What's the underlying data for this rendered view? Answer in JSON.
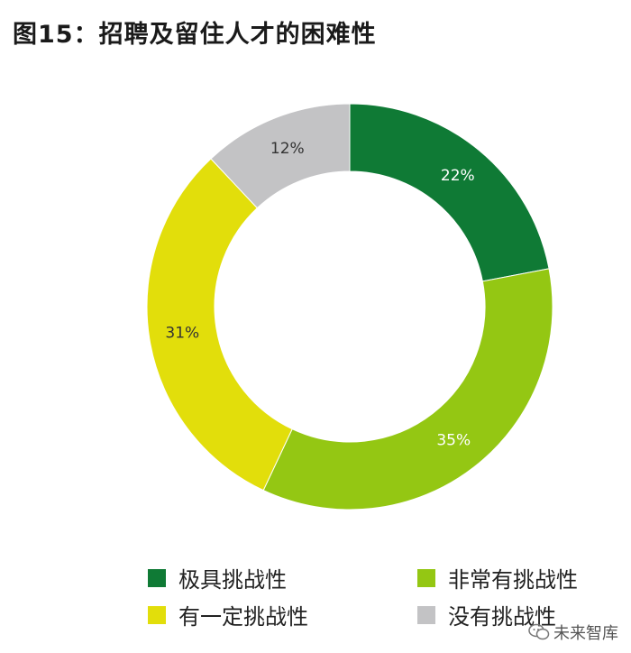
{
  "title": "图15：招聘及留住人才的困难性",
  "chart_data": {
    "type": "pie",
    "donut": true,
    "start_angle_deg": 0,
    "direction": "clockwise",
    "categories": [
      "极具挑战性",
      "非常有挑战性",
      "有一定挑战性",
      "没有挑战性"
    ],
    "values": [
      22,
      35,
      31,
      12
    ],
    "data_labels": [
      "22%",
      "35%",
      "31%",
      "12%"
    ],
    "colors": [
      "#0f7a35",
      "#94c713",
      "#e2de0b",
      "#c3c3c5"
    ],
    "label_colors": [
      "#ffffff",
      "#ffffff",
      "#333333",
      "#333333"
    ],
    "legend_position": "bottom"
  },
  "legend": {
    "items": [
      {
        "label": "极具挑战性",
        "color": "#0f7a35"
      },
      {
        "label": "非常有挑战性",
        "color": "#94c713"
      },
      {
        "label": "有一定挑战性",
        "color": "#e2de0b"
      },
      {
        "label": "没有挑战性",
        "color": "#c3c3c5"
      }
    ]
  },
  "watermark": {
    "text": "未来智库"
  }
}
